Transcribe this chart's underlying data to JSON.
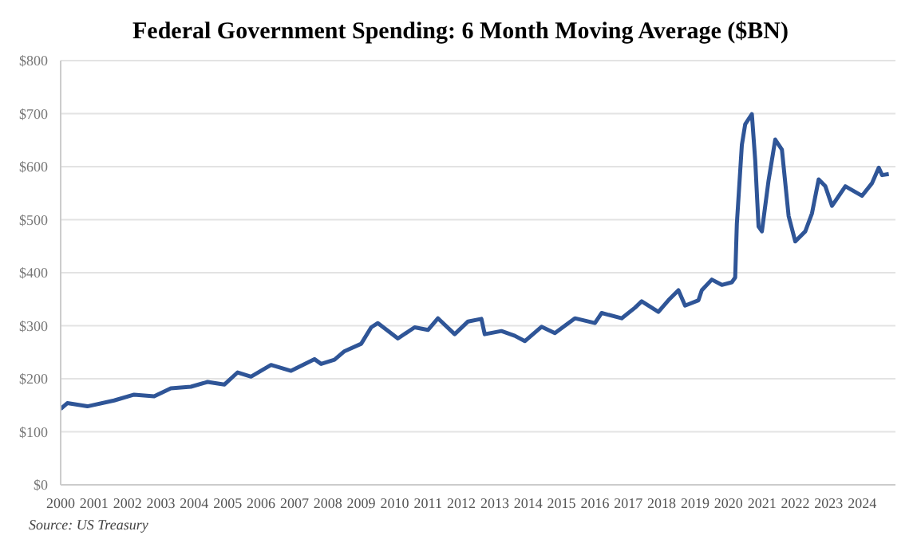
{
  "chart_data": {
    "type": "line",
    "title": "Federal Government Spending: 6 Month Moving Average ($BN)",
    "annotations": [
      "Source: US Treasury"
    ],
    "x": [
      2000.0,
      2000.2,
      2000.8,
      2001.6,
      2002.2,
      2002.8,
      2003.3,
      2003.9,
      2004.4,
      2004.9,
      2005.3,
      2005.7,
      2006.3,
      2006.9,
      2007.6,
      2007.8,
      2008.2,
      2008.5,
      2009.0,
      2009.3,
      2009.5,
      2010.1,
      2010.6,
      2011.0,
      2011.3,
      2011.8,
      2012.2,
      2012.6,
      2012.7,
      2013.2,
      2013.6,
      2013.9,
      2014.4,
      2014.8,
      2015.4,
      2016.0,
      2016.2,
      2016.8,
      2017.2,
      2017.4,
      2017.9,
      2018.2,
      2018.5,
      2018.7,
      2019.1,
      2019.2,
      2019.5,
      2019.8,
      2020.1,
      2020.2,
      2020.25,
      2020.4,
      2020.5,
      2020.7,
      2020.8,
      2020.9,
      2021.0,
      2021.2,
      2021.4,
      2021.6,
      2021.8,
      2022.0,
      2022.3,
      2022.5,
      2022.7,
      2022.9,
      2023.1,
      2023.5,
      2024.0,
      2024.3,
      2024.5,
      2024.6,
      2024.8
    ],
    "series": [
      {
        "color": "#2f5597",
        "values": [
          143,
          154,
          148,
          159,
          170,
          167,
          182,
          185,
          194,
          189,
          212,
          204,
          226,
          215,
          237,
          228,
          236,
          252,
          266,
          297,
          305,
          276,
          297,
          292,
          314,
          284,
          308,
          313,
          284,
          290,
          281,
          271,
          298,
          286,
          314,
          305,
          324,
          314,
          334,
          346,
          326,
          348,
          367,
          338,
          348,
          367,
          387,
          377,
          382,
          391,
          492,
          641,
          680,
          699,
          612,
          487,
          478,
          574,
          651,
          632,
          507,
          459,
          478,
          512,
          576,
          563,
          526,
          563,
          545,
          569,
          598,
          584,
          586
        ]
      }
    ],
    "xlim": [
      2000,
      2025
    ],
    "xticks": [
      2000,
      2001,
      2002,
      2003,
      2004,
      2005,
      2006,
      2007,
      2008,
      2009,
      2010,
      2011,
      2012,
      2013,
      2014,
      2015,
      2016,
      2017,
      2018,
      2019,
      2020,
      2021,
      2022,
      2023,
      2024
    ],
    "ylim": [
      0,
      800
    ],
    "yticks": [
      {
        "value": 0,
        "label": "$0"
      },
      {
        "value": 100,
        "label": "$100"
      },
      {
        "value": 200,
        "label": "$200"
      },
      {
        "value": 300,
        "label": "$300"
      },
      {
        "value": 400,
        "label": "$400"
      },
      {
        "value": 500,
        "label": "$500"
      },
      {
        "value": 600,
        "label": "$600"
      },
      {
        "value": 700,
        "label": "$700"
      },
      {
        "value": 800,
        "label": "$800"
      }
    ],
    "grid": "y",
    "legend": false,
    "marker": "none",
    "line_style": "solid"
  }
}
